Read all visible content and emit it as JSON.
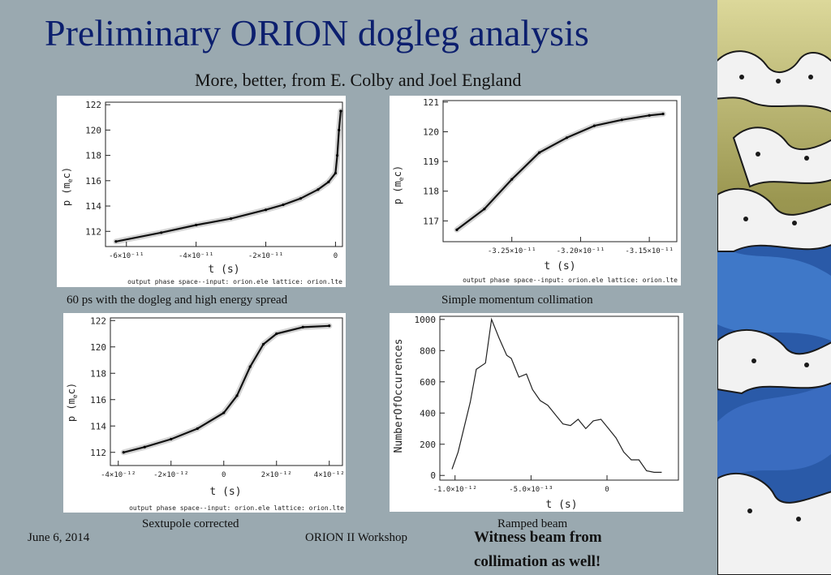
{
  "slide": {
    "title": "Preliminary ORION dogleg analysis",
    "subtitle": "More, better, from E. Colby and Joel England",
    "captions": [
      "60 ps with the dogleg and high energy spread",
      "Simple momentum collimation",
      "Sextupole corrected",
      "Ramped beam"
    ],
    "footer_date": "June 6, 2014",
    "footer_center": "ORION II Workshop",
    "note_line1": "Witness beam from",
    "note_line2": "collimation as well!"
  },
  "chart_data": [
    {
      "type": "scatter",
      "xlabel": "t (s)",
      "ylabel": "p (m",
      "ylabel_sub": "e",
      "ylabel_tail": "c)",
      "x_tick_labels": [
        "-6×10⁻¹¹",
        "-4×10⁻¹¹",
        "-2×10⁻¹¹",
        "0"
      ],
      "y_tick_labels": [
        "112",
        "114",
        "116",
        "118",
        "120",
        "122"
      ],
      "footnote": "output phase space--input: orion.ele    lattice: orion.lte",
      "xlim": [
        -6.6e-11,
        2e-12
      ],
      "ylim": [
        110.8,
        122.2
      ],
      "x_ticks": [
        -6e-11,
        -4e-11,
        -2e-11,
        0
      ],
      "y_ticks": [
        112,
        114,
        116,
        118,
        120,
        122
      ],
      "x": [
        -6.3e-11,
        -5e-11,
        -4e-11,
        -3e-11,
        -2e-11,
        -1.5e-11,
        -1e-11,
        -5e-12,
        -2e-12,
        0,
        5e-13,
        1e-12,
        1.5e-12
      ],
      "y": [
        111.2,
        111.9,
        112.5,
        113.0,
        113.7,
        114.1,
        114.6,
        115.3,
        115.9,
        116.6,
        118.0,
        120.0,
        121.5
      ]
    },
    {
      "type": "scatter",
      "xlabel": "t (s)",
      "ylabel": "p (m",
      "ylabel_sub": "e",
      "ylabel_tail": "c)",
      "x_tick_labels": [
        "-3.25×10⁻¹¹",
        "-3.20×10⁻¹¹",
        "-3.15×10⁻¹¹"
      ],
      "y_tick_labels": [
        "117",
        "118",
        "119",
        "120",
        "121"
      ],
      "footnote": "output phase space--input: orion.ele    lattice: orion.lte",
      "xlim": [
        -3.3e-11,
        -3.13e-11
      ],
      "ylim": [
        116.3,
        121.05
      ],
      "x_ticks": [
        -3.25e-11,
        -3.2e-11,
        -3.15e-11
      ],
      "y_ticks": [
        117,
        118,
        119,
        120,
        121
      ],
      "x": [
        -3.29e-11,
        -3.27e-11,
        -3.25e-11,
        -3.23e-11,
        -3.21e-11,
        -3.19e-11,
        -3.17e-11,
        -3.15e-11,
        -3.14e-11
      ],
      "y": [
        116.7,
        117.4,
        118.4,
        119.3,
        119.8,
        120.2,
        120.4,
        120.55,
        120.6
      ]
    },
    {
      "type": "scatter",
      "xlabel": "t (s)",
      "ylabel": "p (m",
      "ylabel_sub": "e",
      "ylabel_tail": "c)",
      "x_tick_labels": [
        "-4×10⁻¹²",
        "-2×10⁻¹²",
        "0",
        "2×10⁻¹²",
        "4×10⁻¹²"
      ],
      "y_tick_labels": [
        "112",
        "114",
        "116",
        "118",
        "120",
        "122"
      ],
      "footnote": "output phase space--input: orion.ele    lattice: orion.lte",
      "xlim": [
        -4.3e-12,
        4.5e-12
      ],
      "ylim": [
        111.0,
        122.2
      ],
      "x_ticks": [
        -4e-12,
        -2e-12,
        0,
        2e-12,
        4e-12
      ],
      "y_ticks": [
        112,
        114,
        116,
        118,
        120,
        122
      ],
      "x": [
        -3.8e-12,
        -3e-12,
        -2e-12,
        -1e-12,
        0,
        5e-13,
        1e-12,
        1.5e-12,
        2e-12,
        3e-12,
        4e-12
      ],
      "y": [
        112.0,
        112.4,
        113.0,
        113.8,
        115.0,
        116.3,
        118.5,
        120.2,
        121.0,
        121.5,
        121.6
      ]
    },
    {
      "type": "line",
      "xlabel": "t (s)",
      "ylabel": "NumberOfOccurences",
      "x_tick_labels": [
        "-1.0×10⁻¹²",
        "-5.0×10⁻¹³",
        "0"
      ],
      "y_tick_labels": [
        "0",
        "200",
        "400",
        "600",
        "800",
        "1000"
      ],
      "xlim": [
        -1.1e-12,
        4.7e-13
      ],
      "ylim": [
        -30,
        1020
      ],
      "x_ticks": [
        -1e-12,
        -5e-13,
        0
      ],
      "y_ticks": [
        0,
        200,
        400,
        600,
        800,
        1000
      ],
      "x": [
        -1.02e-12,
        -9.8e-13,
        -9e-13,
        -8.6e-13,
        -8e-13,
        -7.6e-13,
        -7.1e-13,
        -6.6e-13,
        -6.3e-13,
        -5.8e-13,
        -5.3e-13,
        -4.9e-13,
        -4.4e-13,
        -3.9e-13,
        -3.4e-13,
        -2.9e-13,
        -2.4e-13,
        -1.9e-13,
        -1.4e-13,
        -9e-14,
        -4e-14,
        1e-14,
        6e-14,
        1.1e-13,
        1.6e-13,
        2.1e-13,
        2.6e-13,
        3.1e-13,
        3.6e-13
      ],
      "y": [
        40,
        150,
        470,
        680,
        720,
        1000,
        880,
        770,
        750,
        630,
        650,
        550,
        480,
        450,
        390,
        330,
        320,
        360,
        300,
        350,
        360,
        300,
        240,
        150,
        100,
        100,
        30,
        20,
        20
      ]
    }
  ]
}
